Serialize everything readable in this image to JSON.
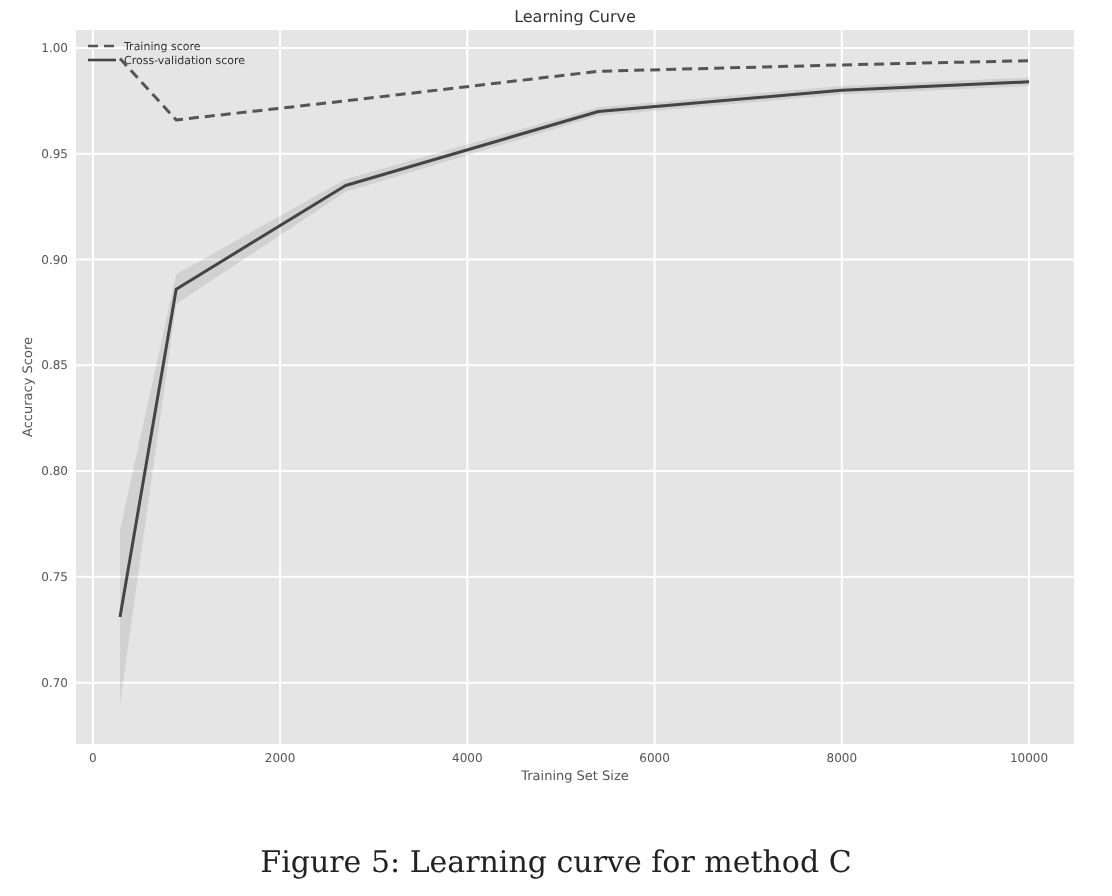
{
  "chart_data": {
    "type": "line",
    "title": "Learning Curve",
    "xlabel": "Training Set Size",
    "ylabel": "Accuracy Score",
    "xlim": [
      -180,
      10480
    ],
    "ylim": [
      0.671,
      1.0085
    ],
    "xticks": [
      0,
      2000,
      4000,
      6000,
      8000,
      10000
    ],
    "yticks": [
      {
        "value": 0.7,
        "label": "0.70"
      },
      {
        "value": 0.75,
        "label": "0.75"
      },
      {
        "value": 0.8,
        "label": "0.80"
      },
      {
        "value": 0.85,
        "label": "0.85"
      },
      {
        "value": 0.9,
        "label": "0.90"
      },
      {
        "value": 0.95,
        "label": "0.95"
      },
      {
        "value": 1.0,
        "label": "1.00"
      }
    ],
    "grid": true,
    "legend": "top left",
    "series": [
      {
        "name": "Training score",
        "color": "#555555",
        "line_style": "dashed",
        "x": [
          290,
          890,
          2700,
          5400,
          8000,
          10000
        ],
        "values": [
          0.995,
          0.966,
          0.975,
          0.989,
          0.992,
          0.994
        ]
      },
      {
        "name": "Cross-validation score",
        "color": "#444444",
        "line_style": "solid",
        "x": [
          290,
          890,
          2700,
          5400,
          8000,
          10000
        ],
        "values": [
          0.731,
          0.886,
          0.935,
          0.97,
          0.98,
          0.984
        ],
        "lower": [
          0.69,
          0.879,
          0.932,
          0.968,
          0.978,
          0.982
        ],
        "upper": [
          0.772,
          0.893,
          0.938,
          0.972,
          0.982,
          0.986
        ]
      }
    ],
    "annotations": [
      "Figure 5: Learning curve for method C"
    ]
  }
}
